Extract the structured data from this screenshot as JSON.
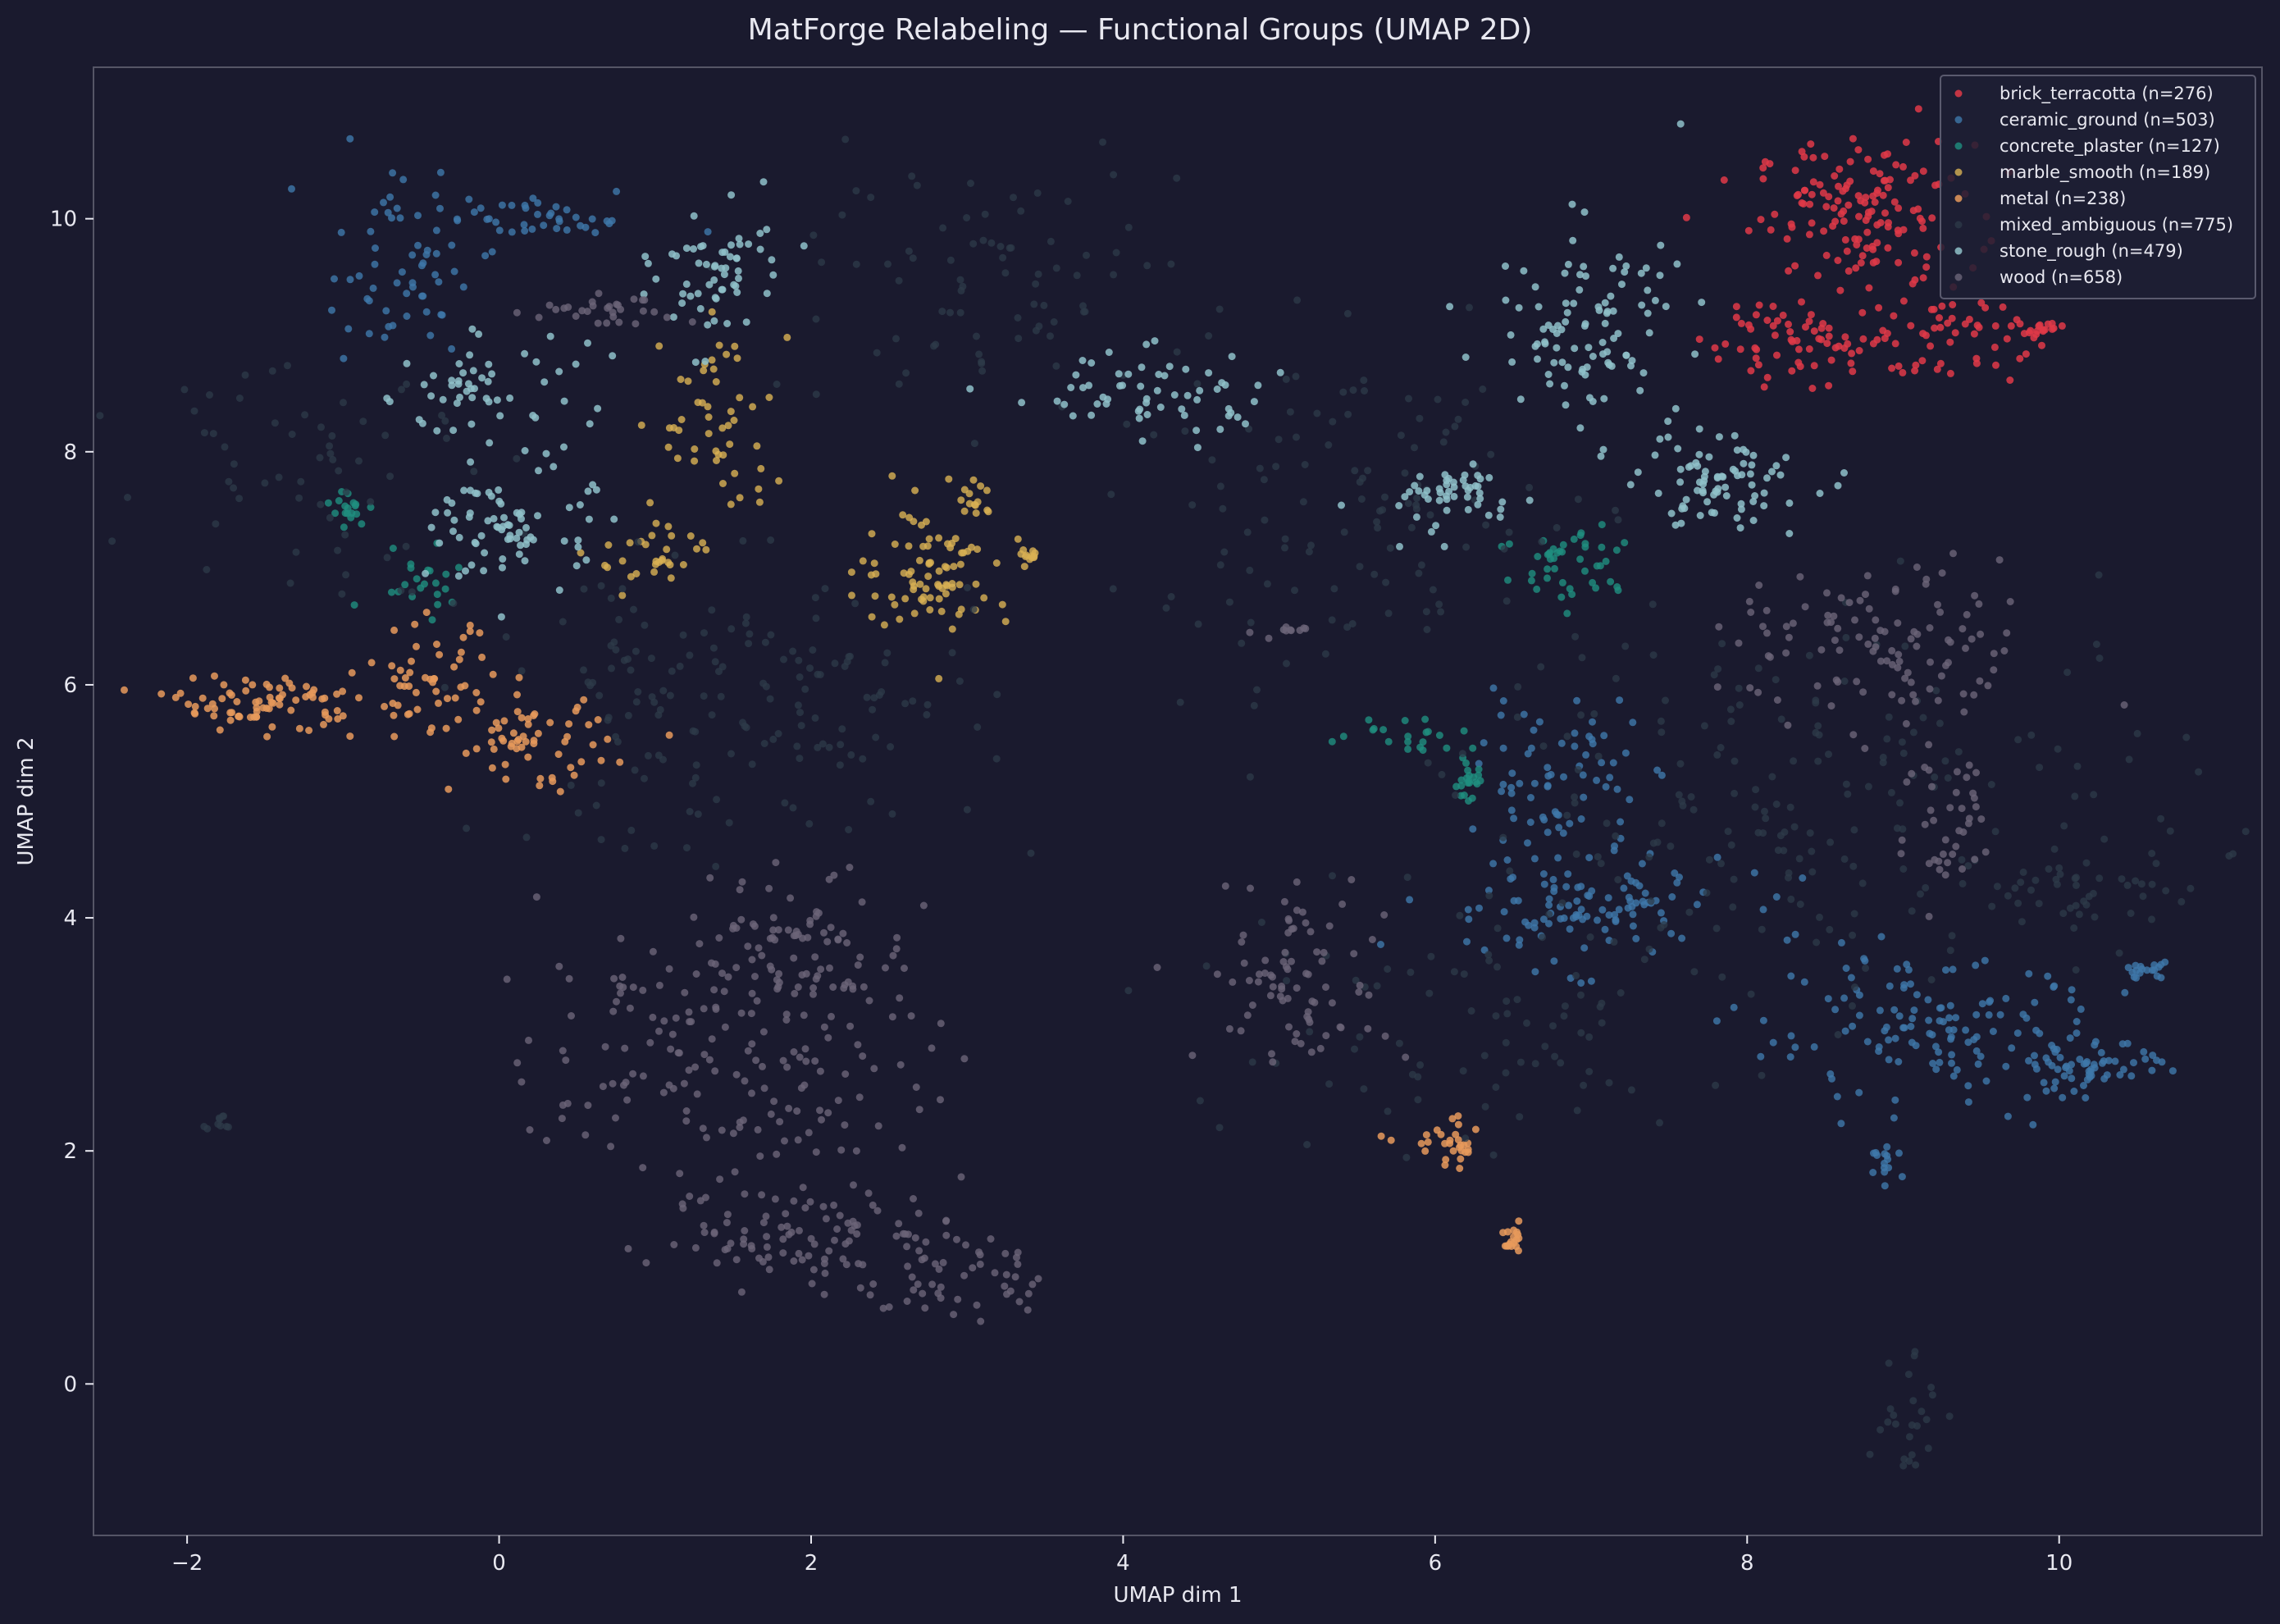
{
  "chart_data": {
    "type": "scatter",
    "title": "MatForge Relabeling — Functional Groups (UMAP 2D)",
    "xlabel": "UMAP dim 1",
    "ylabel": "UMAP dim 2",
    "xlim": [
      -2.6,
      11.3
    ],
    "ylim": [
      -1.3,
      11.3
    ],
    "xticks": [
      -2,
      0,
      2,
      4,
      6,
      8,
      10
    ],
    "yticks": [
      0,
      2,
      4,
      6,
      8,
      10
    ],
    "xtick_labels": [
      "−2",
      "0",
      "2",
      "4",
      "6",
      "8",
      "10"
    ],
    "ytick_labels": [
      "0",
      "2",
      "4",
      "6",
      "8",
      "10"
    ],
    "legend_position": "top-right",
    "colors": {
      "background": "#1a1a2e",
      "axes": "#555566",
      "text": "#e8e8f0"
    },
    "series": [
      {
        "name": "brick_terracotta",
        "legend": "brick_terracotta (n=276)",
        "color": "#e03a48",
        "alpha": 0.85,
        "clusters": [
          {
            "x": 8.75,
            "y": 10.05,
            "sx": 0.35,
            "sy": 0.3,
            "n": 140
          },
          {
            "x": 8.5,
            "y": 9.0,
            "sx": 0.4,
            "sy": 0.22,
            "n": 80
          },
          {
            "x": 9.3,
            "y": 9.0,
            "sx": 0.25,
            "sy": 0.2,
            "n": 40
          },
          {
            "x": 9.9,
            "y": 9.05,
            "sx": 0.06,
            "sy": 0.03,
            "n": 16
          }
        ]
      },
      {
        "name": "ceramic_ground",
        "legend": "ceramic_ground (n=503)",
        "color": "#3f78aa",
        "alpha": 0.8,
        "clusters": [
          {
            "x": -0.65,
            "y": 9.6,
            "sx": 0.25,
            "sy": 0.4,
            "n": 60
          },
          {
            "x": 0.3,
            "y": 10.0,
            "sx": 0.4,
            "sy": 0.1,
            "n": 40
          },
          {
            "x": 6.9,
            "y": 4.1,
            "sx": 0.5,
            "sy": 0.25,
            "n": 110
          },
          {
            "x": 6.8,
            "y": 5.2,
            "sx": 0.25,
            "sy": 0.35,
            "n": 70
          },
          {
            "x": 9.2,
            "y": 3.0,
            "sx": 0.6,
            "sy": 0.3,
            "n": 140
          },
          {
            "x": 10.2,
            "y": 2.7,
            "sx": 0.25,
            "sy": 0.1,
            "n": 50
          },
          {
            "x": 8.9,
            "y": 1.9,
            "sx": 0.05,
            "sy": 0.06,
            "n": 15
          },
          {
            "x": 10.55,
            "y": 3.55,
            "sx": 0.08,
            "sy": 0.04,
            "n": 18
          }
        ]
      },
      {
        "name": "concrete_plaster",
        "legend": "concrete_plaster (n=127)",
        "color": "#1f8f80",
        "alpha": 0.8,
        "clusters": [
          {
            "x": -0.95,
            "y": 7.5,
            "sx": 0.06,
            "sy": 0.08,
            "n": 18
          },
          {
            "x": -0.5,
            "y": 6.95,
            "sx": 0.18,
            "sy": 0.15,
            "n": 22
          },
          {
            "x": 6.9,
            "y": 7.0,
            "sx": 0.25,
            "sy": 0.22,
            "n": 45
          },
          {
            "x": 5.85,
            "y": 5.6,
            "sx": 0.2,
            "sy": 0.08,
            "n": 20
          },
          {
            "x": 6.2,
            "y": 5.2,
            "sx": 0.06,
            "sy": 0.12,
            "n": 22
          }
        ]
      },
      {
        "name": "marble_smooth",
        "legend": "marble_smooth (n=189)",
        "color": "#d9b254",
        "alpha": 0.8,
        "clusters": [
          {
            "x": 2.8,
            "y": 7.0,
            "sx": 0.25,
            "sy": 0.28,
            "n": 85
          },
          {
            "x": 1.4,
            "y": 8.2,
            "sx": 0.18,
            "sy": 0.45,
            "n": 50
          },
          {
            "x": 1.0,
            "y": 7.1,
            "sx": 0.2,
            "sy": 0.22,
            "n": 30
          },
          {
            "x": 3.05,
            "y": 7.6,
            "sx": 0.05,
            "sy": 0.06,
            "n": 12
          },
          {
            "x": 3.4,
            "y": 7.1,
            "sx": 0.04,
            "sy": 0.03,
            "n": 12
          }
        ]
      },
      {
        "name": "metal",
        "legend": "metal (n=238)",
        "color": "#e89a5c",
        "alpha": 0.85,
        "clusters": [
          {
            "x": -1.5,
            "y": 5.85,
            "sx": 0.3,
            "sy": 0.12,
            "n": 80
          },
          {
            "x": -0.45,
            "y": 6.0,
            "sx": 0.2,
            "sy": 0.25,
            "n": 50
          },
          {
            "x": 0.2,
            "y": 5.5,
            "sx": 0.25,
            "sy": 0.2,
            "n": 60
          },
          {
            "x": 6.1,
            "y": 2.05,
            "sx": 0.15,
            "sy": 0.1,
            "n": 30
          },
          {
            "x": 6.5,
            "y": 1.2,
            "sx": 0.03,
            "sy": 0.06,
            "n": 18
          }
        ]
      },
      {
        "name": "mixed_ambiguous",
        "legend": "mixed_ambiguous (n=775)",
        "color": "#2e3b4a",
        "alpha": 0.75,
        "clusters": [
          {
            "x": 1.5,
            "y": 5.8,
            "sx": 0.8,
            "sy": 0.6,
            "n": 160
          },
          {
            "x": 8.5,
            "y": 5.0,
            "sx": 1.2,
            "sy": 0.8,
            "n": 200
          },
          {
            "x": 5.5,
            "y": 7.5,
            "sx": 0.8,
            "sy": 0.7,
            "n": 120
          },
          {
            "x": 3.0,
            "y": 9.5,
            "sx": 0.7,
            "sy": 0.5,
            "n": 80
          },
          {
            "x": -1.2,
            "y": 8.0,
            "sx": 0.5,
            "sy": 0.6,
            "n": 60
          },
          {
            "x": 9.0,
            "y": -0.2,
            "sx": 0.12,
            "sy": 0.3,
            "n": 25
          },
          {
            "x": 6.0,
            "y": 3.0,
            "sx": 1.0,
            "sy": 0.6,
            "n": 80
          },
          {
            "x": -1.8,
            "y": 2.25,
            "sx": 0.05,
            "sy": 0.04,
            "n": 10
          },
          {
            "x": 10.2,
            "y": 4.2,
            "sx": 0.3,
            "sy": 0.2,
            "n": 40
          }
        ]
      },
      {
        "name": "stone_rough",
        "legend": "stone_rough (n=479)",
        "color": "#8fc1c9",
        "alpha": 0.85,
        "clusters": [
          {
            "x": 0.1,
            "y": 7.35,
            "sx": 0.25,
            "sy": 0.28,
            "n": 80
          },
          {
            "x": -0.1,
            "y": 8.6,
            "sx": 0.35,
            "sy": 0.2,
            "n": 50
          },
          {
            "x": 1.4,
            "y": 9.5,
            "sx": 0.2,
            "sy": 0.3,
            "n": 60
          },
          {
            "x": 4.1,
            "y": 8.5,
            "sx": 0.45,
            "sy": 0.2,
            "n": 60
          },
          {
            "x": 7.0,
            "y": 9.1,
            "sx": 0.3,
            "sy": 0.4,
            "n": 100
          },
          {
            "x": 6.1,
            "y": 7.6,
            "sx": 0.25,
            "sy": 0.15,
            "n": 50
          },
          {
            "x": 7.8,
            "y": 7.75,
            "sx": 0.3,
            "sy": 0.2,
            "n": 79
          }
        ]
      },
      {
        "name": "wood",
        "legend": "wood (n=658)",
        "color": "#6b6478",
        "alpha": 0.8,
        "clusters": [
          {
            "x": 1.5,
            "y": 2.8,
            "sx": 0.6,
            "sy": 0.6,
            "n": 180
          },
          {
            "x": 2.0,
            "y": 1.3,
            "sx": 0.5,
            "sy": 0.2,
            "n": 90
          },
          {
            "x": 2.9,
            "y": 0.9,
            "sx": 0.3,
            "sy": 0.2,
            "n": 50
          },
          {
            "x": 2.0,
            "y": 3.8,
            "sx": 0.3,
            "sy": 0.3,
            "n": 60
          },
          {
            "x": 5.1,
            "y": 3.5,
            "sx": 0.3,
            "sy": 0.4,
            "n": 80
          },
          {
            "x": 8.9,
            "y": 6.3,
            "sx": 0.5,
            "sy": 0.35,
            "n": 110
          },
          {
            "x": 9.3,
            "y": 4.8,
            "sx": 0.15,
            "sy": 0.4,
            "n": 40
          },
          {
            "x": 0.7,
            "y": 9.2,
            "sx": 0.25,
            "sy": 0.08,
            "n": 30
          },
          {
            "x": 5.0,
            "y": 6.45,
            "sx": 0.08,
            "sy": 0.03,
            "n": 10
          },
          {
            "x": 0.75,
            "y": 3.4,
            "sx": 0.06,
            "sy": 0.08,
            "n": 8
          }
        ]
      }
    ]
  }
}
